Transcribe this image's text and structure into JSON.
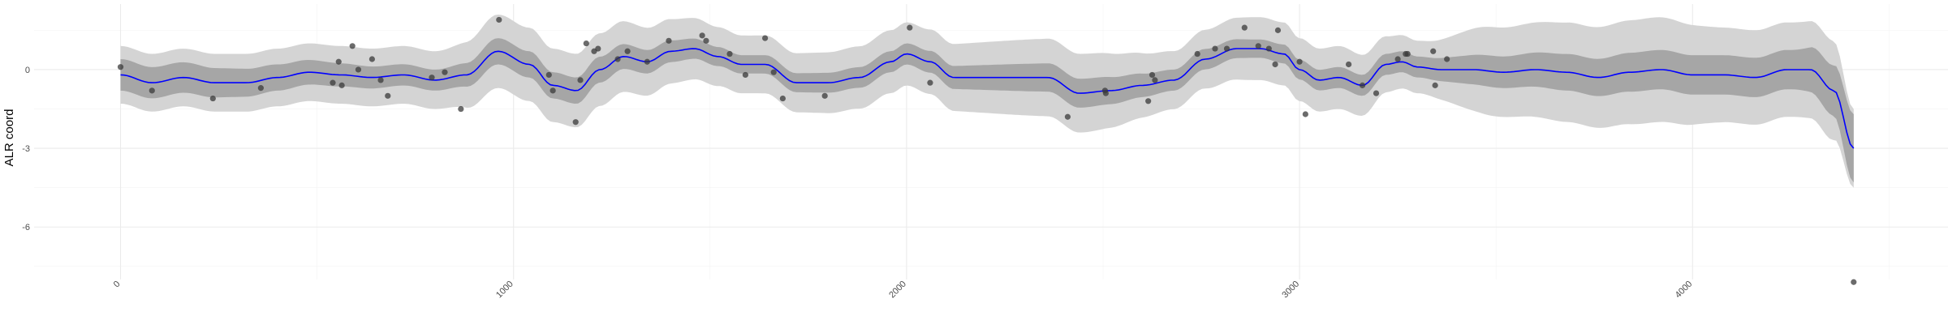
{
  "chart_data": {
    "type": "line",
    "title": "",
    "xlabel": "",
    "ylabel": "ALR coord",
    "xlim": [
      -220,
      4650
    ],
    "ylim": [
      -8.0,
      2.5
    ],
    "x_ticks": [
      0,
      1000,
      2000,
      3000,
      4000
    ],
    "x_tick_labels": [
      "0",
      "1000",
      "2000",
      "3000",
      "4000"
    ],
    "y_ticks": [
      0,
      -3,
      -6
    ],
    "y_tick_labels": [
      "0",
      "-3",
      "-6"
    ],
    "grid": true,
    "legend": "none",
    "colors": {
      "trend_line": "#0000ff",
      "inner_band": "#a6a6a6",
      "outer_band": "#d4d4d4",
      "points": "#3a3a3a",
      "background": "#ffffff"
    },
    "series": [
      {
        "role": "trend",
        "x": [
          0,
          80,
          160,
          240,
          320,
          400,
          480,
          560,
          640,
          720,
          800,
          880,
          960,
          1040,
          1100,
          1160,
          1220,
          1280,
          1340,
          1400,
          1460,
          1520,
          1580,
          1640,
          1720,
          1800,
          1880,
          1960,
          2000,
          2060,
          2120,
          2200,
          2280,
          2360,
          2440,
          2520,
          2600,
          2680,
          2760,
          2840,
          2900,
          2960,
          3000,
          3050,
          3100,
          3160,
          3220,
          3260,
          3300,
          3360,
          3440,
          3520,
          3600,
          3680,
          3760,
          3840,
          3920,
          4000,
          4080,
          4160,
          4240,
          4300,
          4360,
          4410
        ],
        "y": [
          -0.2,
          -0.5,
          -0.3,
          -0.5,
          -0.5,
          -0.3,
          -0.1,
          -0.2,
          -0.3,
          -0.2,
          -0.4,
          -0.2,
          0.7,
          0.2,
          -0.6,
          -0.8,
          0.0,
          0.5,
          0.3,
          0.7,
          0.8,
          0.5,
          0.2,
          0.2,
          -0.5,
          -0.5,
          -0.3,
          0.3,
          0.6,
          0.3,
          -0.3,
          -0.3,
          -0.3,
          -0.3,
          -0.9,
          -0.8,
          -0.6,
          -0.4,
          0.4,
          0.8,
          0.8,
          0.6,
          0.0,
          -0.4,
          -0.3,
          -0.6,
          0.2,
          0.3,
          0.1,
          0.0,
          0.0,
          -0.1,
          0.0,
          -0.1,
          -0.3,
          -0.1,
          0.0,
          -0.2,
          -0.2,
          -0.3,
          0.0,
          0.0,
          -0.8,
          -3.0
        ]
      },
      {
        "role": "inner_band_half_width",
        "x": [
          0,
          800,
          960,
          1160,
          1600,
          1960,
          2440,
          2700,
          2900,
          3100,
          3300,
          3500,
          3700,
          3900,
          4100,
          4250,
          4350,
          4410
        ],
        "y": [
          0.6,
          0.4,
          0.5,
          0.5,
          0.35,
          0.4,
          0.55,
          0.4,
          0.35,
          0.4,
          0.4,
          0.6,
          0.7,
          0.75,
          0.75,
          0.75,
          0.95,
          1.3
        ]
      },
      {
        "role": "outer_band_half_width",
        "x": [
          0,
          800,
          960,
          1160,
          1600,
          1960,
          2440,
          2700,
          2900,
          3100,
          3300,
          3500,
          3700,
          3900,
          4100,
          4250,
          4350,
          4410
        ],
        "y": [
          1.1,
          1.1,
          1.4,
          1.4,
          1.1,
          1.2,
          1.5,
          1.1,
          1.2,
          1.2,
          1.0,
          1.7,
          1.9,
          2.0,
          1.8,
          1.8,
          1.9,
          1.5
        ]
      },
      {
        "role": "observations",
        "x": [
          0,
          80,
          235,
          357,
          540,
          555,
          563,
          590,
          605,
          640,
          662,
          680,
          792,
          825,
          866,
          963,
          1090,
          1100,
          1158,
          1170,
          1185,
          1205,
          1215,
          1265,
          1290,
          1340,
          1395,
          1480,
          1490,
          1550,
          1590,
          1640,
          1662,
          1685,
          1792,
          2008,
          2060,
          2410,
          2505,
          2507,
          2615,
          2625,
          2632,
          2740,
          2785,
          2815,
          2860,
          2895,
          2922,
          2938,
          2945,
          3000,
          3015,
          3125,
          3160,
          3195,
          3250,
          3270,
          3275,
          3340,
          3345,
          3375,
          4410
        ],
        "y": [
          0.1,
          -0.8,
          -1.1,
          -0.7,
          -0.5,
          0.3,
          -0.6,
          0.9,
          0.0,
          0.4,
          -0.4,
          -1.0,
          -0.3,
          -0.1,
          -1.5,
          1.9,
          -0.2,
          -0.8,
          -2.0,
          -0.4,
          1.0,
          0.7,
          0.8,
          0.4,
          0.7,
          0.3,
          1.1,
          1.3,
          1.1,
          0.6,
          -0.2,
          1.2,
          -0.1,
          -1.1,
          -1.0,
          1.6,
          -0.5,
          -1.8,
          -0.8,
          -0.9,
          -1.2,
          -0.2,
          -0.4,
          0.6,
          0.8,
          0.8,
          1.6,
          0.9,
          0.8,
          0.2,
          1.5,
          0.3,
          -1.7,
          0.2,
          -0.6,
          -0.9,
          0.4,
          0.6,
          0.6,
          0.7,
          -0.6,
          0.4,
          -8.1
        ]
      }
    ]
  }
}
